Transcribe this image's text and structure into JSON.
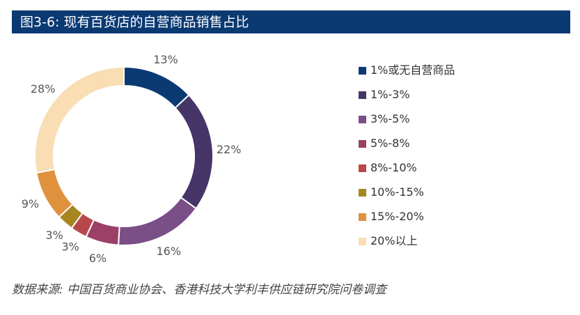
{
  "title": "图3-6: 现有百货店的自营商品销售占比",
  "source": "数据来源: 中国百货商业协会、香港科技大学利丰供应链研究院问卷调查",
  "chart_data": {
    "type": "pie",
    "variant": "donut",
    "legend_position": "right",
    "categories": [
      "1%或无自营商品",
      "1%-3%",
      "3%-5%",
      "5%-8%",
      "8%-10%",
      "10%-15%",
      "15%-20%",
      "20%以上"
    ],
    "values": [
      13,
      22,
      16,
      6,
      3,
      3,
      9,
      28
    ],
    "labels": [
      "13%",
      "22%",
      "16%",
      "6%",
      "3%",
      "3%",
      "9%",
      "28%"
    ],
    "colors": [
      "#0b3a73",
      "#463567",
      "#7a4e87",
      "#9c4066",
      "#b6484b",
      "#a8861f",
      "#e0913e",
      "#f9ddb3"
    ]
  }
}
